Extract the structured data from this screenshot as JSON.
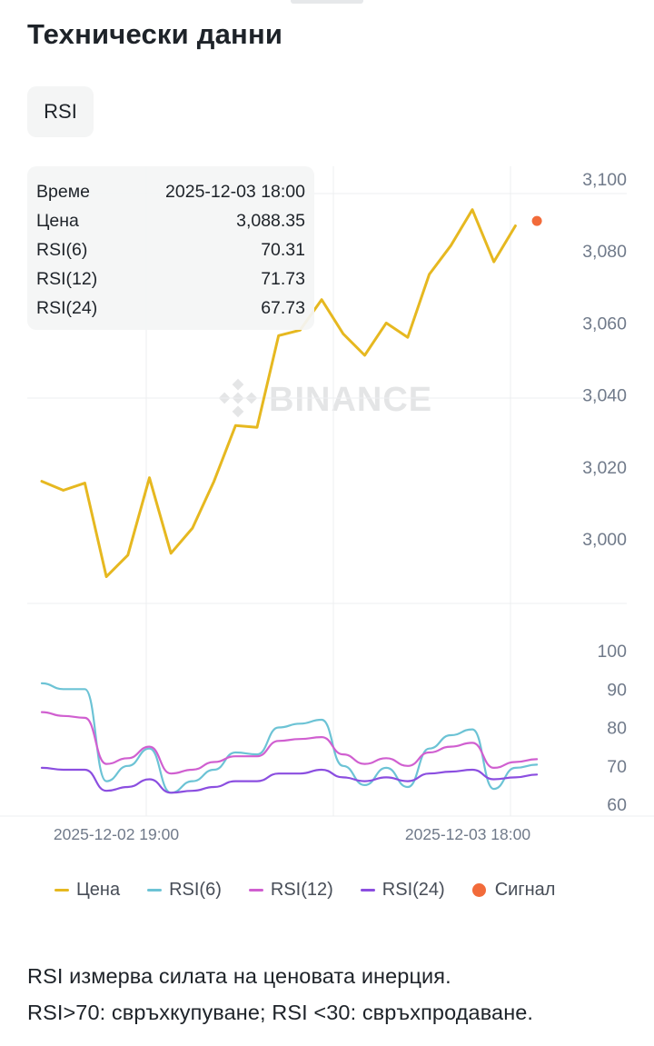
{
  "title": "Технически данни",
  "tab_label": "RSI",
  "watermark": "BINANCE",
  "tooltip": {
    "rows": [
      {
        "label": "Време",
        "value": "2025-12-03 18:00"
      },
      {
        "label": "Цена",
        "value": "3,088.35"
      },
      {
        "label": "RSI(6)",
        "value": "70.31"
      },
      {
        "label": "RSI(12)",
        "value": "71.73"
      },
      {
        "label": "RSI(24)",
        "value": "67.73"
      }
    ]
  },
  "legend": [
    {
      "label": "Цена",
      "color": "#e6b820",
      "kind": "line"
    },
    {
      "label": "RSI(6)",
      "color": "#6cc3d5",
      "kind": "line"
    },
    {
      "label": "RSI(12)",
      "color": "#d05fd0",
      "kind": "line"
    },
    {
      "label": "RSI(24)",
      "color": "#8b4ee0",
      "kind": "line"
    },
    {
      "label": "Сигнал",
      "color": "#f26b3a",
      "kind": "dot"
    }
  ],
  "note": {
    "line1": "RSI измерва силата на ценовата инерция.",
    "line2": "RSI>70: свръхкупуване; RSI <30: свръхпродаване."
  },
  "chart_data": [
    {
      "type": "line",
      "series": [
        {
          "name": "Цена",
          "color": "#e6b820",
          "values": [
            3016,
            3013.5,
            3015.5,
            2989.5,
            2995.5,
            3017,
            2996,
            3003,
            3016,
            3031.5,
            3031,
            3056.5,
            3058,
            3066.5,
            3057,
            3051,
            3060,
            3056,
            3073.5,
            3081.5,
            3091.5,
            3077,
            3087
          ]
        }
      ],
      "signal": {
        "index": 23,
        "value": 3088.35,
        "color": "#f26b3a"
      },
      "ytick_labels": [
        "3,100",
        "3,080",
        "3,060",
        "3,040",
        "3,020",
        "3,000"
      ],
      "ylim": [
        2982,
        3104
      ],
      "grid": true
    },
    {
      "type": "line",
      "series": [
        {
          "name": "RSI(6)",
          "color": "#6cc3d5",
          "values": [
            91.5,
            90,
            90,
            66,
            70,
            74.5,
            63,
            66,
            69,
            73.5,
            73,
            80,
            81,
            82,
            70,
            65,
            69.5,
            64.5,
            74.5,
            78,
            79.5,
            64,
            69.5,
            70.31
          ]
        },
        {
          "name": "RSI(12)",
          "color": "#d05fd0",
          "values": [
            84,
            83,
            82.5,
            70.5,
            72,
            75,
            68,
            69,
            71,
            72.5,
            72.5,
            76.5,
            77,
            77.5,
            73,
            70.5,
            72,
            70,
            73.5,
            75,
            76,
            69.5,
            71,
            71.73
          ]
        },
        {
          "name": "RSI(24)",
          "color": "#8b4ee0",
          "values": [
            69.5,
            69,
            69,
            63.5,
            64.5,
            66.5,
            63,
            63.5,
            64.5,
            66,
            66,
            68,
            68,
            69,
            67,
            66,
            67,
            66,
            68,
            68.5,
            69,
            66.5,
            67,
            67.73
          ]
        }
      ],
      "ytick_labels": [
        "100",
        "90",
        "80",
        "70",
        "60"
      ],
      "ylim": [
        59,
        103
      ],
      "grid": true
    }
  ],
  "x_tick_labels": [
    "2025-12-02 19:00",
    "2025-12-03 18:00"
  ]
}
